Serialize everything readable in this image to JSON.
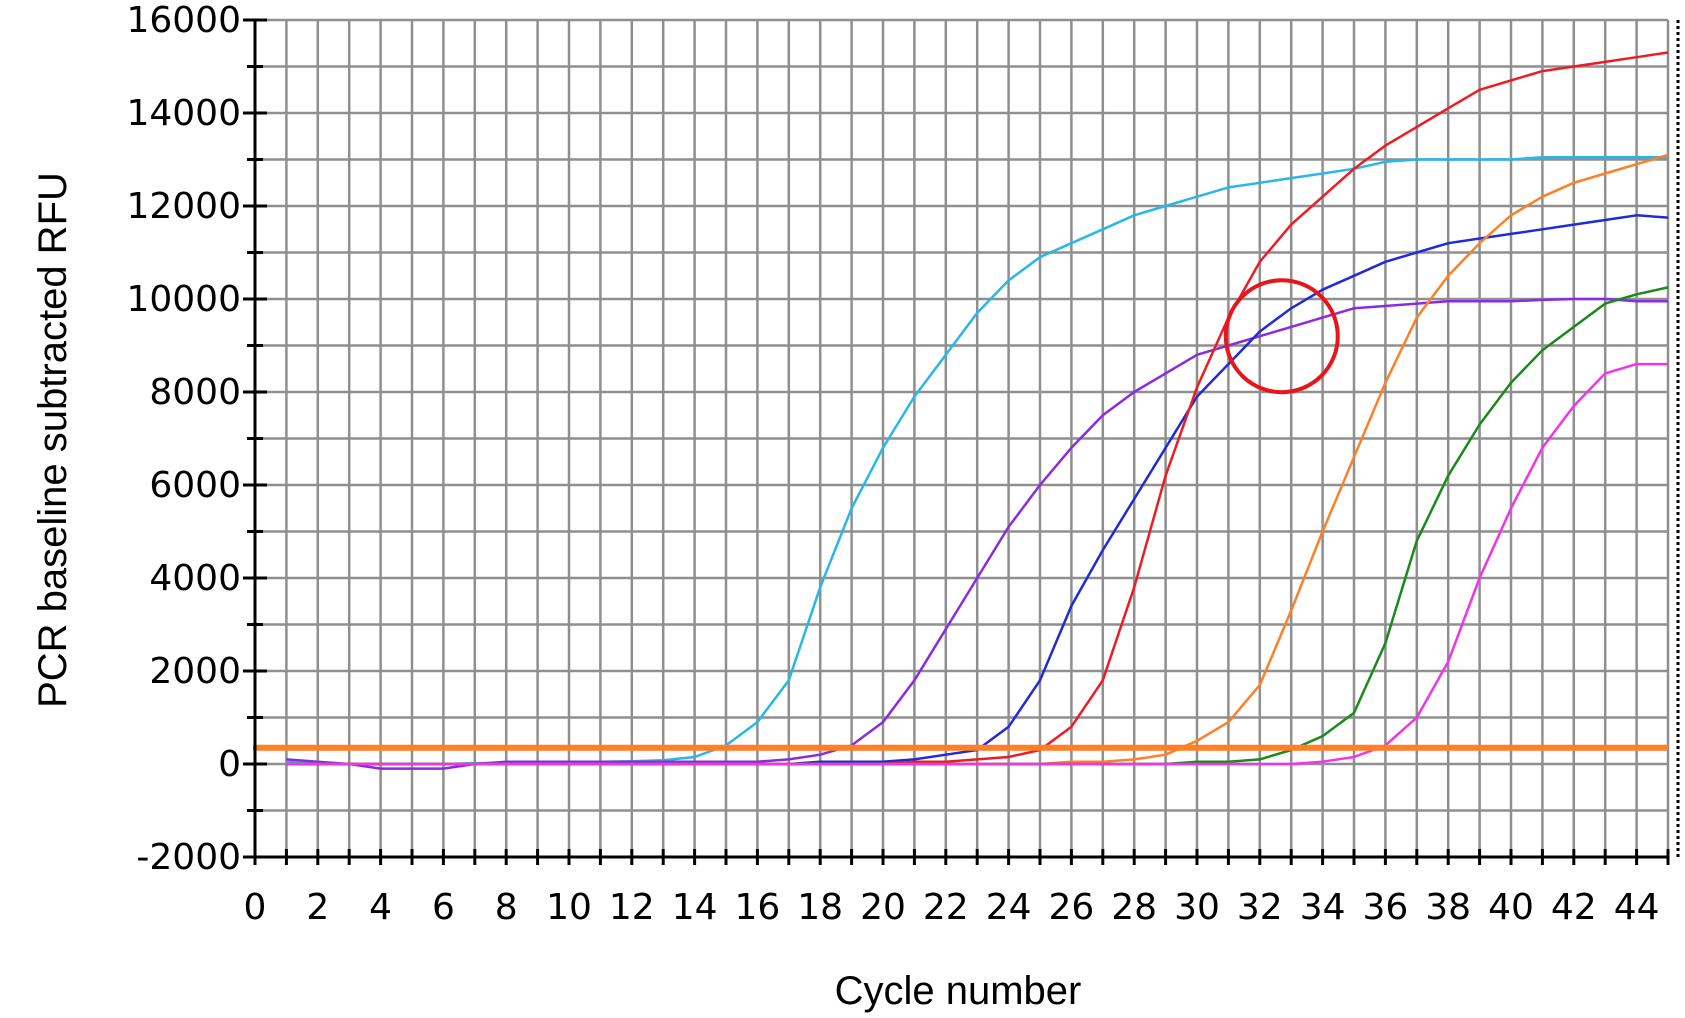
{
  "chart_data": {
    "type": "line",
    "title": "",
    "xlabel": "Cycle number",
    "ylabel": "PCR baseline subtracted RFU",
    "xlim": [
      0,
      45
    ],
    "ylim": [
      -2000,
      16000
    ],
    "x_ticks": [
      0,
      2,
      4,
      6,
      8,
      10,
      12,
      14,
      16,
      18,
      20,
      22,
      24,
      26,
      28,
      30,
      32,
      34,
      36,
      38,
      40,
      42,
      44
    ],
    "y_ticks": [
      -2000,
      0,
      2000,
      4000,
      6000,
      8000,
      10000,
      12000,
      14000,
      16000
    ],
    "grid": true,
    "threshold": {
      "value": 350,
      "color": "#FF7F27"
    },
    "annotation": {
      "type": "circle",
      "x": 32.7,
      "y": 9200,
      "color": "#E8161B"
    },
    "series": [
      {
        "color": "#29B6E8",
        "x": [
          1,
          2,
          3,
          4,
          5,
          6,
          7,
          8,
          9,
          10,
          11,
          12,
          13,
          14,
          15,
          16,
          17,
          18,
          19,
          20,
          21,
          22,
          23,
          24,
          25,
          26,
          27,
          28,
          29,
          30,
          31,
          32,
          33,
          34,
          35,
          36,
          37,
          38,
          39,
          40,
          41,
          42,
          43,
          44,
          45
        ],
        "y": [
          50,
          0,
          0,
          0,
          0,
          0,
          20,
          20,
          30,
          40,
          50,
          60,
          80,
          150,
          400,
          900,
          1800,
          3800,
          5500,
          6800,
          7900,
          8800,
          9700,
          10400,
          10900,
          11200,
          11500,
          11800,
          12000,
          12200,
          12400,
          12500,
          12600,
          12700,
          12800,
          12950,
          13000,
          13000,
          13000,
          13000,
          13050,
          13050,
          13050,
          13050,
          13050
        ]
      },
      {
        "color": "#8A2BE2",
        "x": [
          1,
          2,
          3,
          4,
          5,
          6,
          7,
          8,
          9,
          10,
          11,
          12,
          13,
          14,
          15,
          16,
          17,
          18,
          19,
          20,
          21,
          22,
          23,
          24,
          25,
          26,
          27,
          28,
          29,
          30,
          31,
          32,
          33,
          34,
          35,
          36,
          37,
          38,
          39,
          40,
          41,
          42,
          43,
          44,
          45
        ],
        "y": [
          100,
          50,
          0,
          -100,
          -100,
          -100,
          0,
          50,
          50,
          50,
          50,
          50,
          50,
          50,
          50,
          50,
          100,
          200,
          400,
          900,
          1800,
          2900,
          4000,
          5100,
          6000,
          6800,
          7500,
          8000,
          8400,
          8800,
          9000,
          9200,
          9400,
          9600,
          9800,
          9850,
          9900,
          9950,
          9950,
          9950,
          9980,
          10000,
          10000,
          9950,
          9950
        ]
      },
      {
        "color": "#1F2BD6",
        "x": [
          1,
          2,
          3,
          4,
          5,
          6,
          7,
          8,
          9,
          10,
          11,
          12,
          13,
          14,
          15,
          16,
          17,
          18,
          19,
          20,
          21,
          22,
          23,
          24,
          25,
          26,
          27,
          28,
          29,
          30,
          31,
          32,
          33,
          34,
          35,
          36,
          37,
          38,
          39,
          40,
          41,
          42,
          43,
          44,
          45
        ],
        "y": [
          0,
          0,
          0,
          0,
          0,
          0,
          0,
          0,
          0,
          0,
          0,
          0,
          0,
          0,
          0,
          0,
          0,
          50,
          50,
          50,
          100,
          200,
          300,
          800,
          1800,
          3400,
          4600,
          5700,
          6800,
          7900,
          8600,
          9300,
          9800,
          10200,
          10500,
          10800,
          11000,
          11200,
          11300,
          11400,
          11500,
          11600,
          11700,
          11800,
          11750
        ]
      },
      {
        "color": "#ED1C24",
        "x": [
          1,
          2,
          3,
          4,
          5,
          6,
          7,
          8,
          9,
          10,
          11,
          12,
          13,
          14,
          15,
          16,
          17,
          18,
          19,
          20,
          21,
          22,
          23,
          24,
          25,
          26,
          27,
          28,
          29,
          30,
          31,
          32,
          33,
          34,
          35,
          36,
          37,
          38,
          39,
          40,
          41,
          42,
          43,
          44,
          45
        ],
        "y": [
          0,
          0,
          0,
          0,
          0,
          0,
          0,
          0,
          0,
          0,
          0,
          0,
          0,
          0,
          0,
          0,
          0,
          0,
          0,
          0,
          50,
          50,
          100,
          150,
          300,
          800,
          1800,
          3800,
          6200,
          8100,
          9600,
          10800,
          11600,
          12200,
          12800,
          13300,
          13700,
          14100,
          14500,
          14700,
          14900,
          15000,
          15100,
          15200,
          15300
        ]
      },
      {
        "color": "#FF7F27",
        "x": [
          1,
          2,
          3,
          4,
          5,
          6,
          7,
          8,
          9,
          10,
          11,
          12,
          13,
          14,
          15,
          16,
          17,
          18,
          19,
          20,
          21,
          22,
          23,
          24,
          25,
          26,
          27,
          28,
          29,
          30,
          31,
          32,
          33,
          34,
          35,
          36,
          37,
          38,
          39,
          40,
          41,
          42,
          43,
          44,
          45
        ],
        "y": [
          0,
          0,
          0,
          0,
          0,
          0,
          0,
          0,
          0,
          0,
          0,
          0,
          0,
          0,
          0,
          0,
          0,
          0,
          0,
          0,
          0,
          0,
          0,
          0,
          0,
          50,
          50,
          100,
          200,
          500,
          900,
          1700,
          3300,
          5000,
          6600,
          8200,
          9600,
          10500,
          11200,
          11800,
          12200,
          12500,
          12700,
          12900,
          13100
        ]
      },
      {
        "color": "#1A8A1A",
        "x": [
          1,
          2,
          3,
          4,
          5,
          6,
          7,
          8,
          9,
          10,
          11,
          12,
          13,
          14,
          15,
          16,
          17,
          18,
          19,
          20,
          21,
          22,
          23,
          24,
          25,
          26,
          27,
          28,
          29,
          30,
          31,
          32,
          33,
          34,
          35,
          36,
          37,
          38,
          39,
          40,
          41,
          42,
          43,
          44,
          45
        ],
        "y": [
          0,
          0,
          0,
          0,
          0,
          0,
          0,
          0,
          0,
          0,
          0,
          0,
          0,
          0,
          0,
          0,
          0,
          0,
          0,
          0,
          0,
          0,
          0,
          0,
          0,
          0,
          0,
          0,
          0,
          50,
          50,
          100,
          300,
          600,
          1100,
          2600,
          4800,
          6200,
          7300,
          8200,
          8900,
          9400,
          9900,
          10100,
          10250
        ]
      },
      {
        "color": "#F233E8",
        "x": [
          1,
          2,
          3,
          4,
          5,
          6,
          7,
          8,
          9,
          10,
          11,
          12,
          13,
          14,
          15,
          16,
          17,
          18,
          19,
          20,
          21,
          22,
          23,
          24,
          25,
          26,
          27,
          28,
          29,
          30,
          31,
          32,
          33,
          34,
          35,
          36,
          37,
          38,
          39,
          40,
          41,
          42,
          43,
          44,
          45
        ],
        "y": [
          0,
          0,
          0,
          0,
          0,
          0,
          0,
          0,
          0,
          0,
          0,
          0,
          0,
          0,
          0,
          0,
          0,
          0,
          0,
          0,
          0,
          0,
          0,
          0,
          0,
          0,
          0,
          0,
          0,
          0,
          0,
          0,
          0,
          50,
          150,
          400,
          1000,
          2200,
          4000,
          5500,
          6800,
          7700,
          8400,
          8600,
          8600
        ]
      }
    ]
  }
}
